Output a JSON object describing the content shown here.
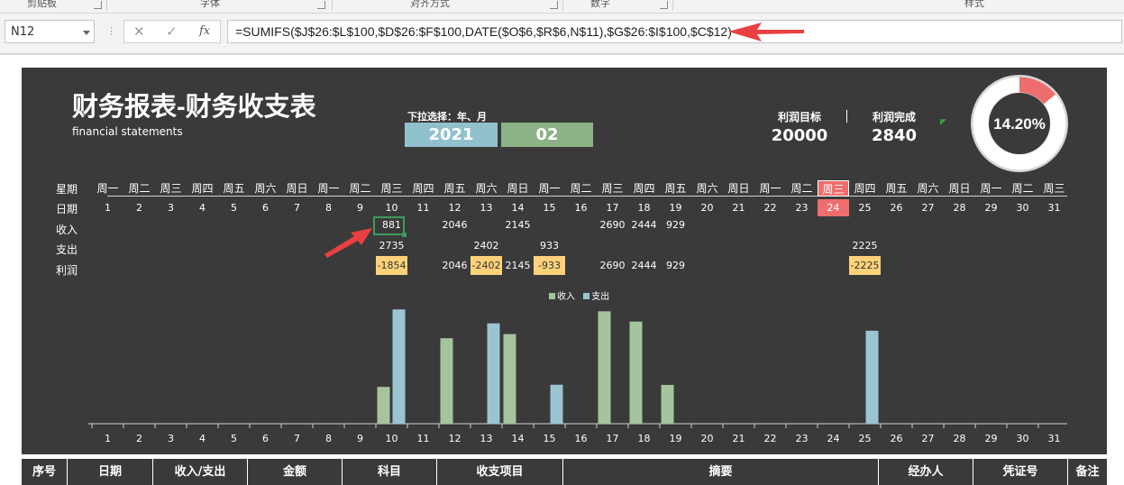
{
  "ribbon": {
    "groups": [
      "剪贴板",
      "字体",
      "对齐方式",
      "数字",
      "样式"
    ]
  },
  "formula_bar": {
    "name_box": "N12",
    "cancel_icon": "✕",
    "enter_icon": "✓",
    "fx_label": "fx",
    "formula": "=SUMIFS($J$26:$L$100,$D$26:$F$100,DATE($O$6,$R$6,N$11),$G$26:$I$100,$C$12)"
  },
  "dashboard": {
    "title": "财务报表-财务收支表",
    "subtitle": "financial statements",
    "dropdown_label": "下拉选择：年、月",
    "year": "2021",
    "month": "02",
    "profit_target_label": "利润目标",
    "profit_target": "20000",
    "profit_done_label": "利润完成",
    "profit_done": "2840",
    "percent": "14.20%",
    "percent_value": 0.142,
    "row_labels": {
      "weekday": "星期",
      "date": "日期",
      "income": "收入",
      "expense": "支出",
      "profit": "利润"
    },
    "weekdays": [
      "周一",
      "周二",
      "周三",
      "周四",
      "周五",
      "周六",
      "周日",
      "周一",
      "周二",
      "周三",
      "周四",
      "周五",
      "周六",
      "周日",
      "周一",
      "周二",
      "周三",
      "周四",
      "周五",
      "周六",
      "周日",
      "周一",
      "周二",
      "周三",
      "周四",
      "周五",
      "周六",
      "周日",
      "周一",
      "周二",
      "周三"
    ],
    "dates": [
      "1",
      "2",
      "3",
      "4",
      "5",
      "6",
      "7",
      "8",
      "9",
      "10",
      "11",
      "12",
      "13",
      "14",
      "15",
      "16",
      "17",
      "18",
      "19",
      "20",
      "21",
      "22",
      "23",
      "24",
      "25",
      "26",
      "27",
      "28",
      "29",
      "30",
      "31"
    ],
    "highlight_date": "24",
    "income": [
      "",
      "",
      "",
      "",
      "",
      "",
      "",
      "",
      "",
      "881",
      "",
      "2046",
      "",
      "2145",
      "",
      "",
      "2690",
      "2444",
      "929",
      "",
      "",
      "",
      "",
      "",
      "",
      "",
      "",
      "",
      "",
      "",
      ""
    ],
    "expense": [
      "",
      "",
      "",
      "",
      "",
      "",
      "",
      "",
      "",
      "2735",
      "",
      "",
      "2402",
      "",
      "933",
      "",
      "",
      "",
      "",
      "",
      "",
      "",
      "",
      "",
      "2225",
      "",
      "",
      "",
      "",
      "",
      ""
    ],
    "profit": [
      "",
      "",
      "",
      "",
      "",
      "",
      "",
      "",
      "",
      "-1854",
      "",
      "2046",
      "-2402",
      "2145",
      "-933",
      "",
      "2690",
      "2444",
      "929",
      "",
      "",
      "",
      "",
      "",
      "-2225",
      "",
      "",
      "",
      "",
      "",
      ""
    ],
    "selected_cell": "881",
    "colors": {
      "income": "#a5c49e",
      "expense": "#9bc4d2",
      "highlight": "#ee6e6e",
      "negative": "#ffd27a",
      "background": "#3a3a3a"
    }
  },
  "chart_data": {
    "type": "bar",
    "categories": [
      "1",
      "2",
      "3",
      "4",
      "5",
      "6",
      "7",
      "8",
      "9",
      "10",
      "11",
      "12",
      "13",
      "14",
      "15",
      "16",
      "17",
      "18",
      "19",
      "20",
      "21",
      "22",
      "23",
      "24",
      "25",
      "26",
      "27",
      "28",
      "29",
      "30",
      "31"
    ],
    "series": [
      {
        "name": "收入",
        "values": [
          0,
          0,
          0,
          0,
          0,
          0,
          0,
          0,
          0,
          881,
          0,
          2046,
          0,
          2145,
          0,
          0,
          2690,
          2444,
          929,
          0,
          0,
          0,
          0,
          0,
          0,
          0,
          0,
          0,
          0,
          0,
          0
        ]
      },
      {
        "name": "支出",
        "values": [
          0,
          0,
          0,
          0,
          0,
          0,
          0,
          0,
          0,
          2735,
          0,
          0,
          2402,
          0,
          933,
          0,
          0,
          0,
          0,
          0,
          0,
          0,
          0,
          0,
          2225,
          0,
          0,
          0,
          0,
          0,
          0
        ]
      }
    ],
    "ylim": [
      0,
      2740
    ],
    "legend": "top-center",
    "grid": false
  },
  "table": {
    "headers": [
      "序号",
      "日期",
      "收入/支出",
      "金额",
      "科目",
      "收支项目",
      "摘要",
      "经办人",
      "凭证号",
      "备注"
    ]
  }
}
